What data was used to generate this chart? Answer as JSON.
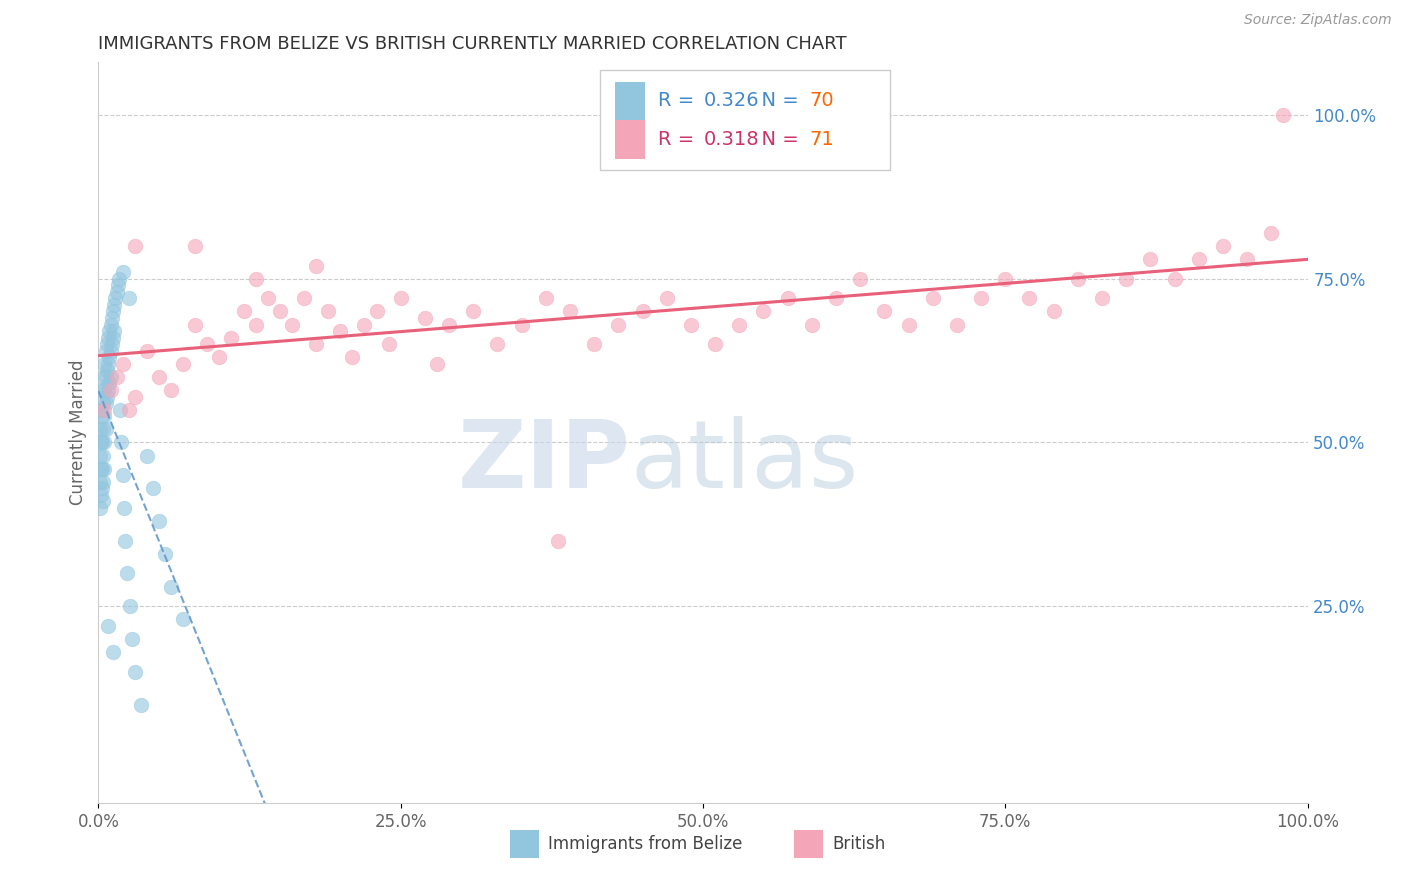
{
  "title": "IMMIGRANTS FROM BELIZE VS BRITISH CURRENTLY MARRIED CORRELATION CHART",
  "source_text": "Source: ZipAtlas.com",
  "ylabel": "Currently Married",
  "legend_label_1": "Immigrants from Belize",
  "legend_label_2": "British",
  "r1": 0.326,
  "n1": 70,
  "r2": 0.318,
  "n2": 71,
  "color_blue": "#92C5DE",
  "color_pink": "#F4A6B8",
  "color_blue_line": "#6699CC",
  "color_pink_line": "#E8607A",
  "color_blue_text": "#4488CC",
  "color_pink_text": "#CC3366",
  "color_n_text": "#FF6600",
  "xlim": [
    0.0,
    1.0
  ],
  "ylim": [
    -0.05,
    1.08
  ],
  "xticks": [
    0.0,
    0.25,
    0.5,
    0.75,
    1.0
  ],
  "yticks_right": [
    0.25,
    0.5,
    0.75,
    1.0
  ],
  "watermark_zip": "ZIP",
  "watermark_atlas": "atlas",
  "blue_scatter_x": [
    0.001,
    0.001,
    0.001,
    0.001,
    0.002,
    0.002,
    0.002,
    0.002,
    0.003,
    0.003,
    0.003,
    0.003,
    0.003,
    0.004,
    0.004,
    0.004,
    0.004,
    0.004,
    0.004,
    0.005,
    0.005,
    0.005,
    0.005,
    0.005,
    0.006,
    0.006,
    0.006,
    0.006,
    0.007,
    0.007,
    0.007,
    0.008,
    0.008,
    0.008,
    0.009,
    0.009,
    0.009,
    0.01,
    0.01,
    0.01,
    0.011,
    0.011,
    0.012,
    0.012,
    0.013,
    0.013,
    0.014,
    0.015,
    0.016,
    0.017,
    0.018,
    0.019,
    0.02,
    0.021,
    0.022,
    0.024,
    0.026,
    0.028,
    0.03,
    0.035,
    0.04,
    0.045,
    0.05,
    0.055,
    0.06,
    0.07,
    0.02,
    0.025,
    0.008,
    0.012
  ],
  "blue_scatter_y": [
    0.52,
    0.48,
    0.44,
    0.4,
    0.55,
    0.5,
    0.46,
    0.42,
    0.58,
    0.54,
    0.5,
    0.46,
    0.43,
    0.6,
    0.56,
    0.52,
    0.48,
    0.44,
    0.41,
    0.62,
    0.58,
    0.54,
    0.5,
    0.46,
    0.64,
    0.6,
    0.56,
    0.52,
    0.65,
    0.61,
    0.57,
    0.66,
    0.62,
    0.58,
    0.67,
    0.63,
    0.59,
    0.68,
    0.64,
    0.6,
    0.69,
    0.65,
    0.7,
    0.66,
    0.71,
    0.67,
    0.72,
    0.73,
    0.74,
    0.75,
    0.55,
    0.5,
    0.45,
    0.4,
    0.35,
    0.3,
    0.25,
    0.2,
    0.15,
    0.1,
    0.48,
    0.43,
    0.38,
    0.33,
    0.28,
    0.23,
    0.76,
    0.72,
    0.22,
    0.18
  ],
  "pink_scatter_x": [
    0.005,
    0.01,
    0.015,
    0.02,
    0.025,
    0.03,
    0.04,
    0.05,
    0.06,
    0.07,
    0.08,
    0.09,
    0.1,
    0.11,
    0.12,
    0.13,
    0.14,
    0.15,
    0.16,
    0.17,
    0.18,
    0.19,
    0.2,
    0.21,
    0.22,
    0.23,
    0.24,
    0.25,
    0.27,
    0.29,
    0.31,
    0.33,
    0.35,
    0.37,
    0.39,
    0.41,
    0.43,
    0.45,
    0.47,
    0.49,
    0.51,
    0.53,
    0.55,
    0.57,
    0.59,
    0.61,
    0.63,
    0.65,
    0.67,
    0.69,
    0.71,
    0.73,
    0.75,
    0.77,
    0.79,
    0.81,
    0.83,
    0.85,
    0.87,
    0.89,
    0.91,
    0.93,
    0.95,
    0.97,
    0.03,
    0.08,
    0.13,
    0.18,
    0.28,
    0.38,
    0.98
  ],
  "pink_scatter_y": [
    0.55,
    0.58,
    0.6,
    0.62,
    0.55,
    0.57,
    0.64,
    0.6,
    0.58,
    0.62,
    0.68,
    0.65,
    0.63,
    0.66,
    0.7,
    0.68,
    0.72,
    0.7,
    0.68,
    0.72,
    0.65,
    0.7,
    0.67,
    0.63,
    0.68,
    0.7,
    0.65,
    0.72,
    0.69,
    0.68,
    0.7,
    0.65,
    0.68,
    0.72,
    0.7,
    0.65,
    0.68,
    0.7,
    0.72,
    0.68,
    0.65,
    0.68,
    0.7,
    0.72,
    0.68,
    0.72,
    0.75,
    0.7,
    0.68,
    0.72,
    0.68,
    0.72,
    0.75,
    0.72,
    0.7,
    0.75,
    0.72,
    0.75,
    0.78,
    0.75,
    0.78,
    0.8,
    0.78,
    0.82,
    0.8,
    0.8,
    0.75,
    0.77,
    0.62,
    0.35,
    1.0
  ]
}
